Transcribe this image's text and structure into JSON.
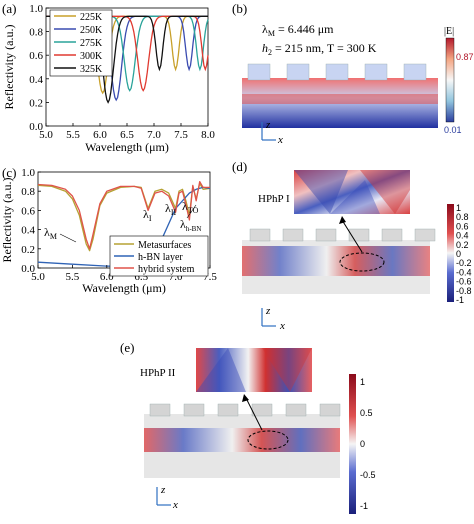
{
  "panels": {
    "a": {
      "label": "(a)"
    },
    "b": {
      "label": "(b)",
      "line1": "λ",
      "line1_sub": "M",
      "line1_rest": " = 6.446 μm",
      "line2": "h",
      "line2_sub": "2",
      "line2_rest": " = 215 nm, T = 300 K",
      "cbar_title": "|E|",
      "cbar_max": "0.87",
      "cbar_min": "0.01",
      "axis_z": "z",
      "axis_x": "x"
    },
    "c": {
      "label": "(c)",
      "ann_m": "λ",
      "ann_m_sub": "M",
      "ann_1": "λ",
      "ann_1_sub": "I",
      "ann_2": "λ",
      "ann_2_sub": "II",
      "ann_3": "λ",
      "ann_3_sub": "TO",
      "ann_4": "λ",
      "ann_4_sub": "h-BN"
    },
    "d": {
      "label": "(d)",
      "inset": "HPhP I",
      "cbar_ticks": [
        "1",
        "0.8",
        "0.6",
        "0.4",
        "0.2",
        "0",
        "-0.2",
        "-0.4",
        "-0.6",
        "-0.8",
        "-1"
      ],
      "axis_z": "z",
      "axis_x": "x"
    },
    "e": {
      "label": "(e)",
      "inset": "HPhP II",
      "cbar_ticks": [
        "1",
        "0.5",
        "0",
        "-0.5",
        "-1"
      ],
      "axis_z": "z",
      "axis_x": "x"
    }
  },
  "colors": {
    "c225": "#c8a02a",
    "c250": "#3a4bb0",
    "c275": "#2aa39a",
    "c300": "#e03a30",
    "c325": "#111111",
    "meta": "#b5a233",
    "hbn": "#2f63b5",
    "hybrid": "#e0534a"
  },
  "chart_data": [
    {
      "type": "line",
      "title": "",
      "xlabel": "Wavelength (μm)",
      "ylabel": "Reflectivity (a.u.)",
      "xlim": [
        5.0,
        8.0
      ],
      "ylim": [
        0.0,
        1.0
      ],
      "xticks": [
        "5.0",
        "5.5",
        "6.0",
        "6.5",
        "7.0",
        "7.5",
        "8.0"
      ],
      "yticks": [
        "0.0",
        "0.2",
        "0.4",
        "0.6",
        "0.8",
        "1.0"
      ],
      "legend_position": "top-left",
      "series": [
        {
          "name": "225K",
          "dips": [
            6.05,
            7.4
          ],
          "floor": 0.28
        },
        {
          "name": "250K",
          "dips": [
            6.3,
            7.65
          ],
          "floor": 0.22
        },
        {
          "name": "275K",
          "dips": [
            6.55,
            7.85
          ],
          "floor": 0.3
        },
        {
          "name": "300K",
          "dips": [
            6.8,
            7.95
          ],
          "floor": 0.3
        },
        {
          "name": "325K",
          "dips": [
            6.15,
            7.1
          ],
          "floor": 0.2
        }
      ]
    },
    {
      "type": "line",
      "title": "",
      "xlabel": "Wavelength (μm)",
      "ylabel": "Reflectivity (a.u.)",
      "xlim": [
        5.0,
        7.5
      ],
      "ylim": [
        0.0,
        1.0
      ],
      "xticks": [
        "5.0",
        "5.5",
        "6.0",
        "6.5",
        "7.0",
        "7.5"
      ],
      "yticks": [
        "0.0",
        "0.2",
        "0.4",
        "0.6",
        "0.8",
        "1.0"
      ],
      "legend_position": "bottom-right",
      "series": [
        {
          "name": "Metasurfaces",
          "x": [
            5.0,
            5.2,
            5.4,
            5.5,
            5.6,
            5.7,
            5.75,
            5.8,
            5.9,
            6.0,
            6.2,
            6.4,
            6.5,
            6.6,
            6.7,
            6.8,
            6.9,
            7.0,
            7.05,
            7.1,
            7.15,
            7.2,
            7.25,
            7.3,
            7.35,
            7.4,
            7.5
          ],
          "y": [
            0.86,
            0.85,
            0.8,
            0.72,
            0.55,
            0.25,
            0.18,
            0.3,
            0.65,
            0.78,
            0.84,
            0.85,
            0.84,
            0.62,
            0.8,
            0.82,
            0.78,
            0.62,
            0.8,
            0.82,
            0.7,
            0.55,
            0.85,
            0.72,
            0.88,
            0.82,
            0.83
          ]
        },
        {
          "name": "h-BN layer",
          "x": [
            5.0,
            5.5,
            6.0,
            6.3,
            6.5,
            6.6,
            6.8,
            7.0,
            7.2,
            7.3,
            7.4,
            7.5
          ],
          "y": [
            0.06,
            0.04,
            0.02,
            0.02,
            0.04,
            0.08,
            0.3,
            0.62,
            0.78,
            0.82,
            0.84,
            0.83
          ]
        },
        {
          "name": "hybrid system",
          "x": [
            5.0,
            5.2,
            5.4,
            5.5,
            5.6,
            5.7,
            5.75,
            5.8,
            5.9,
            6.0,
            6.2,
            6.4,
            6.5,
            6.6,
            6.7,
            6.8,
            6.9,
            7.0,
            7.05,
            7.1,
            7.15,
            7.2,
            7.25,
            7.3,
            7.35,
            7.4,
            7.5
          ],
          "y": [
            0.87,
            0.86,
            0.82,
            0.75,
            0.6,
            0.3,
            0.2,
            0.35,
            0.67,
            0.8,
            0.85,
            0.85,
            0.83,
            0.6,
            0.78,
            0.8,
            0.75,
            0.58,
            0.78,
            0.8,
            0.66,
            0.5,
            0.86,
            0.7,
            0.9,
            0.84,
            0.84
          ]
        }
      ]
    }
  ]
}
